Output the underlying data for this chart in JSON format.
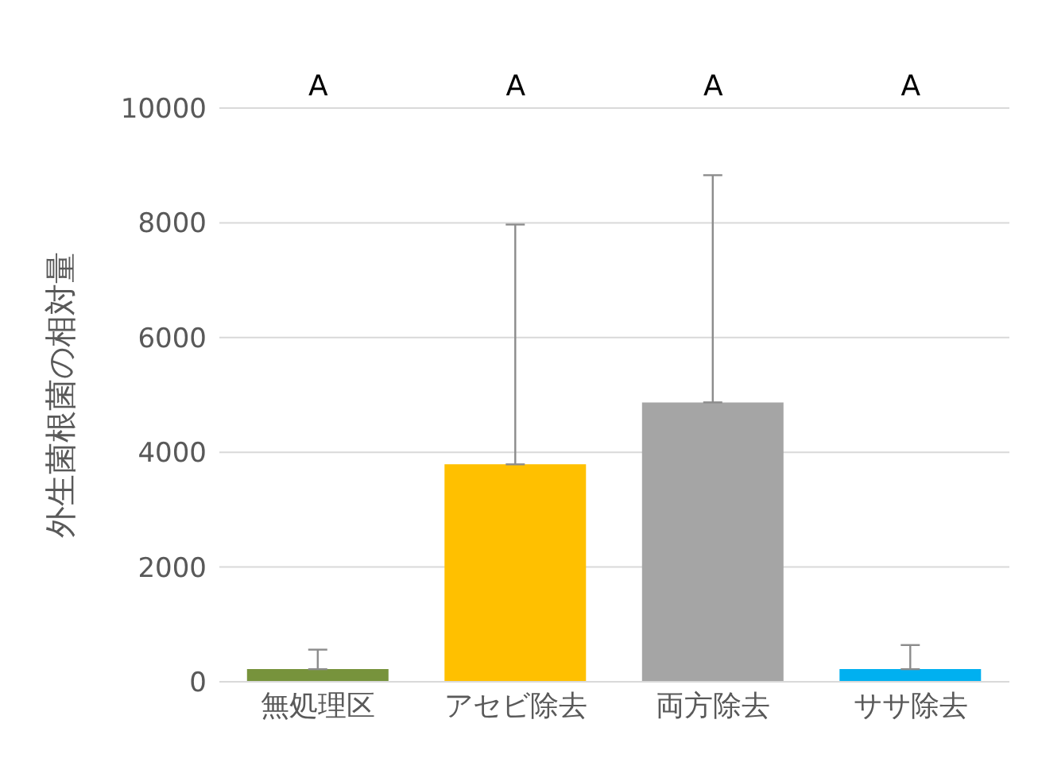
{
  "chart_data": {
    "type": "bar",
    "ylabel": "外生菌根菌の相対量",
    "categories": [
      "無処理区",
      "アセビ除去",
      "両方除去",
      "ササ除去"
    ],
    "values": [
      220,
      3790,
      4870,
      220
    ],
    "colors": [
      "#77933c",
      "#ffc000",
      "#a5a5a5",
      "#00b0f0"
    ],
    "errors": [
      [
        220,
        560
      ],
      [
        3790,
        7970
      ],
      [
        4870,
        8830
      ],
      [
        220,
        640
      ]
    ],
    "ylim": [
      0,
      10000
    ],
    "yticks": [
      0,
      2000,
      4000,
      6000,
      8000,
      10000
    ],
    "grid": "y",
    "annotations": [
      "A",
      "A",
      "A",
      "A"
    ]
  }
}
